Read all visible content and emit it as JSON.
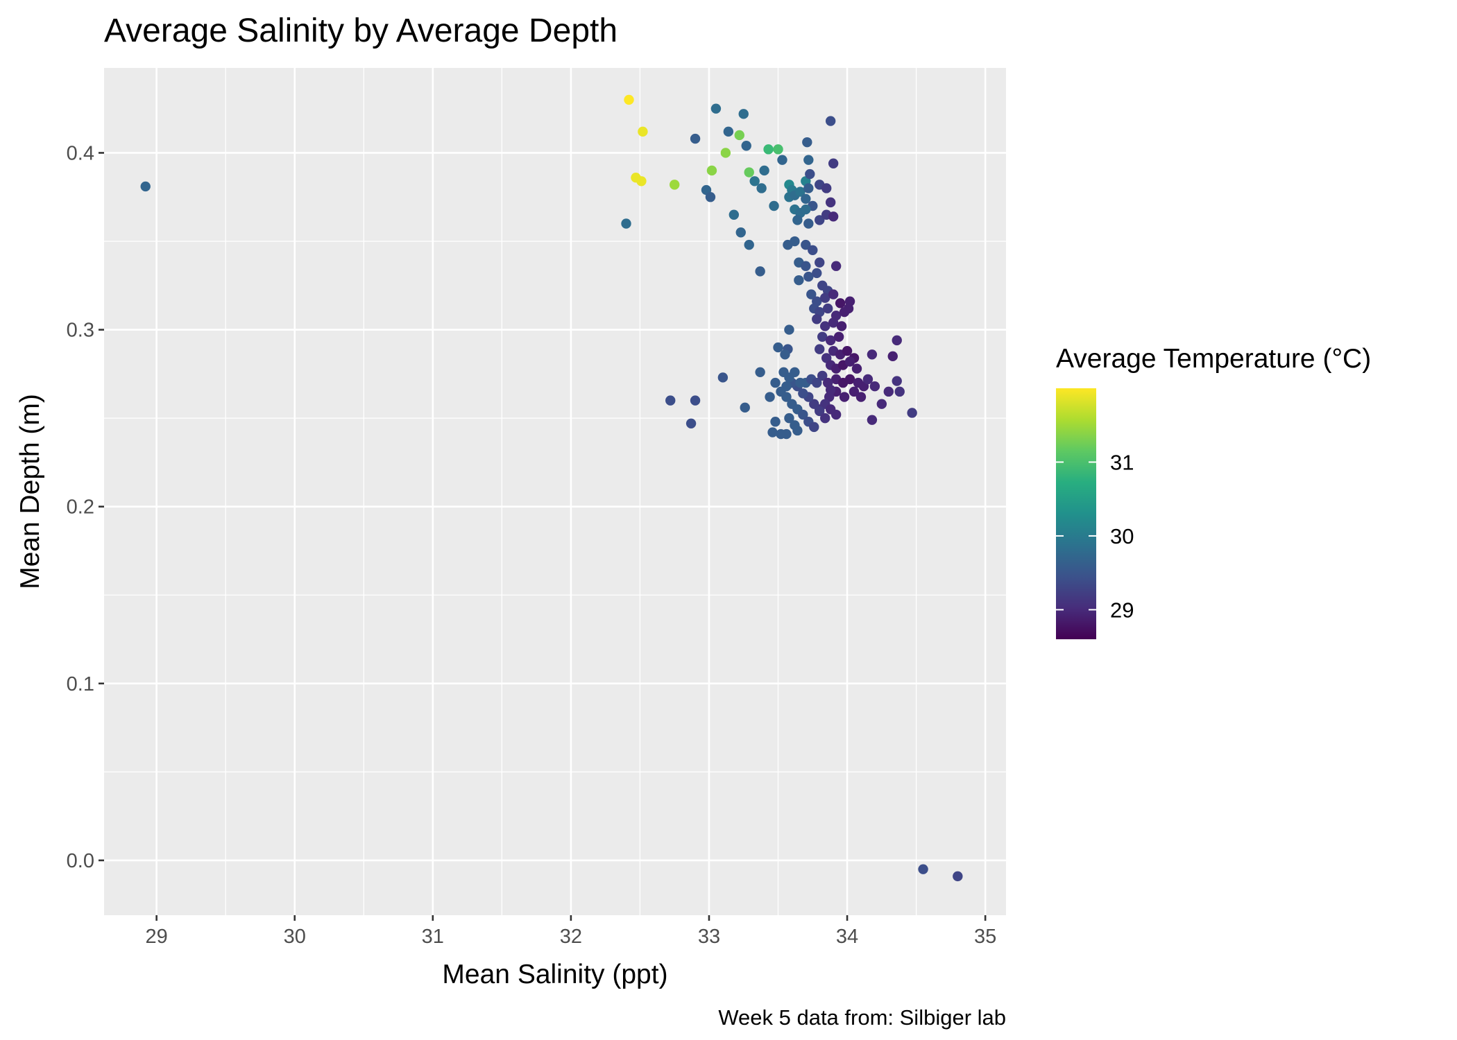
{
  "chart_data": {
    "type": "scatter",
    "title": "Average Salinity by Average Depth",
    "xlabel": "Mean Salinity (ppt)",
    "ylabel": "Mean Depth (m)",
    "caption": "Week 5 data from: Silbiger lab",
    "xlim": [
      28.62,
      35.15
    ],
    "ylim": [
      -0.031,
      0.448
    ],
    "x_ticks": [
      29,
      30,
      31,
      32,
      33,
      34,
      35
    ],
    "x_tick_labels": [
      "29",
      "30",
      "31",
      "32",
      "33",
      "34",
      "35"
    ],
    "y_ticks": [
      0.0,
      0.1,
      0.2,
      0.3,
      0.4
    ],
    "y_tick_labels": [
      "0.0",
      "0.1",
      "0.2",
      "0.3",
      "0.4"
    ],
    "grid": true,
    "legend": {
      "title": "Average Temperature (°C)",
      "type": "colorbar",
      "palette": "viridis",
      "range": [
        28.6,
        32.0
      ],
      "ticks": [
        29,
        30,
        31
      ],
      "tick_labels": [
        "29",
        "30",
        "31"
      ],
      "placement": "right"
    },
    "colors": {
      "panel_background": "#ebebeb",
      "grid": "#ffffff",
      "low": "#440154",
      "high": "#fde725"
    },
    "points": [
      [
        28.92,
        0.381,
        29.7
      ],
      [
        32.42,
        0.43,
        32.0
      ],
      [
        32.52,
        0.412,
        31.9
      ],
      [
        32.47,
        0.386,
        31.9
      ],
      [
        32.51,
        0.384,
        31.9
      ],
      [
        32.75,
        0.382,
        31.5
      ],
      [
        32.4,
        0.36,
        29.8
      ],
      [
        33.02,
        0.39,
        31.4
      ],
      [
        33.12,
        0.4,
        31.4
      ],
      [
        33.22,
        0.41,
        31.3
      ],
      [
        33.29,
        0.389,
        31.2
      ],
      [
        33.43,
        0.402,
        30.9
      ],
      [
        33.5,
        0.402,
        31.0
      ],
      [
        33.05,
        0.425,
        29.8
      ],
      [
        33.25,
        0.422,
        29.8
      ],
      [
        32.9,
        0.408,
        29.6
      ],
      [
        33.14,
        0.412,
        29.7
      ],
      [
        33.27,
        0.404,
        29.7
      ],
      [
        33.53,
        0.396,
        29.7
      ],
      [
        33.71,
        0.406,
        29.6
      ],
      [
        33.88,
        0.418,
        29.4
      ],
      [
        32.98,
        0.379,
        29.7
      ],
      [
        33.01,
        0.375,
        29.6
      ],
      [
        33.33,
        0.384,
        29.9
      ],
      [
        33.38,
        0.38,
        29.8
      ],
      [
        33.4,
        0.39,
        29.8
      ],
      [
        33.58,
        0.382,
        30.2
      ],
      [
        33.6,
        0.379,
        30.0
      ],
      [
        33.7,
        0.384,
        30.1
      ],
      [
        33.73,
        0.388,
        29.4
      ],
      [
        33.72,
        0.396,
        29.7
      ],
      [
        33.9,
        0.394,
        29.2
      ],
      [
        33.8,
        0.382,
        29.3
      ],
      [
        33.85,
        0.38,
        29.2
      ],
      [
        33.88,
        0.372,
        29.1
      ],
      [
        33.58,
        0.375,
        29.9
      ],
      [
        33.62,
        0.376,
        29.8
      ],
      [
        33.66,
        0.378,
        29.9
      ],
      [
        33.7,
        0.374,
        29.7
      ],
      [
        33.72,
        0.38,
        29.6
      ],
      [
        33.75,
        0.37,
        29.5
      ],
      [
        33.62,
        0.368,
        29.9
      ],
      [
        33.66,
        0.366,
        29.8
      ],
      [
        33.7,
        0.368,
        29.8
      ],
      [
        33.64,
        0.362,
        29.7
      ],
      [
        33.72,
        0.36,
        29.6
      ],
      [
        33.8,
        0.362,
        29.3
      ],
      [
        33.85,
        0.365,
        29.2
      ],
      [
        33.9,
        0.364,
        29.0
      ],
      [
        33.47,
        0.37,
        29.8
      ],
      [
        33.18,
        0.365,
        29.8
      ],
      [
        33.23,
        0.355,
        29.7
      ],
      [
        33.29,
        0.348,
        29.7
      ],
      [
        33.37,
        0.333,
        29.6
      ],
      [
        33.57,
        0.348,
        29.6
      ],
      [
        33.62,
        0.35,
        29.6
      ],
      [
        33.7,
        0.348,
        29.5
      ],
      [
        33.75,
        0.345,
        29.4
      ],
      [
        33.65,
        0.338,
        29.6
      ],
      [
        33.7,
        0.336,
        29.5
      ],
      [
        33.8,
        0.338,
        29.3
      ],
      [
        33.92,
        0.336,
        29.0
      ],
      [
        33.65,
        0.328,
        29.6
      ],
      [
        33.72,
        0.33,
        29.5
      ],
      [
        33.78,
        0.332,
        29.4
      ],
      [
        33.82,
        0.325,
        29.3
      ],
      [
        33.86,
        0.322,
        29.3
      ],
      [
        33.74,
        0.32,
        29.5
      ],
      [
        33.78,
        0.316,
        29.4
      ],
      [
        33.84,
        0.318,
        29.2
      ],
      [
        33.9,
        0.32,
        29.0
      ],
      [
        33.95,
        0.315,
        28.8
      ],
      [
        34.02,
        0.316,
        28.9
      ],
      [
        33.76,
        0.312,
        29.4
      ],
      [
        33.8,
        0.31,
        29.3
      ],
      [
        33.86,
        0.312,
        29.2
      ],
      [
        33.92,
        0.308,
        29.0
      ],
      [
        33.98,
        0.31,
        28.9
      ],
      [
        34.01,
        0.312,
        28.9
      ],
      [
        33.78,
        0.306,
        29.2
      ],
      [
        33.84,
        0.302,
        29.1
      ],
      [
        33.9,
        0.304,
        29.0
      ],
      [
        33.96,
        0.302,
        28.9
      ],
      [
        33.82,
        0.296,
        29.2
      ],
      [
        33.88,
        0.294,
        29.0
      ],
      [
        33.94,
        0.296,
        28.9
      ],
      [
        33.9,
        0.288,
        29.0
      ],
      [
        33.95,
        0.286,
        28.9
      ],
      [
        34.0,
        0.288,
        28.8
      ],
      [
        34.05,
        0.284,
        28.8
      ],
      [
        33.58,
        0.3,
        29.6
      ],
      [
        33.57,
        0.289,
        29.5
      ],
      [
        33.8,
        0.289,
        29.2
      ],
      [
        33.85,
        0.284,
        29.1
      ],
      [
        33.88,
        0.28,
        29.0
      ],
      [
        33.92,
        0.278,
        28.9
      ],
      [
        33.97,
        0.28,
        28.8
      ],
      [
        34.02,
        0.282,
        28.9
      ],
      [
        34.07,
        0.278,
        28.9
      ],
      [
        34.18,
        0.286,
        29.0
      ],
      [
        34.33,
        0.285,
        28.9
      ],
      [
        34.36,
        0.294,
        29.0
      ],
      [
        33.92,
        0.272,
        28.9
      ],
      [
        33.97,
        0.27,
        28.8
      ],
      [
        34.02,
        0.272,
        28.8
      ],
      [
        34.08,
        0.27,
        28.9
      ],
      [
        34.12,
        0.268,
        28.9
      ],
      [
        34.15,
        0.272,
        29.0
      ],
      [
        34.2,
        0.268,
        29.0
      ],
      [
        34.3,
        0.265,
        29.0
      ],
      [
        34.36,
        0.271,
        29.1
      ],
      [
        34.38,
        0.265,
        29.1
      ],
      [
        34.25,
        0.258,
        29.0
      ],
      [
        34.18,
        0.249,
        29.0
      ],
      [
        34.47,
        0.253,
        29.2
      ],
      [
        34.1,
        0.262,
        28.9
      ],
      [
        34.05,
        0.265,
        28.9
      ],
      [
        33.98,
        0.262,
        28.9
      ],
      [
        33.92,
        0.265,
        28.9
      ],
      [
        33.87,
        0.262,
        29.0
      ],
      [
        33.84,
        0.258,
        29.1
      ],
      [
        33.8,
        0.255,
        29.1
      ],
      [
        33.76,
        0.258,
        29.2
      ],
      [
        33.72,
        0.262,
        29.3
      ],
      [
        33.68,
        0.264,
        29.4
      ],
      [
        33.64,
        0.268,
        29.4
      ],
      [
        33.6,
        0.27,
        29.5
      ],
      [
        33.56,
        0.268,
        29.6
      ],
      [
        33.52,
        0.265,
        29.6
      ],
      [
        33.48,
        0.27,
        29.6
      ],
      [
        33.44,
        0.262,
        29.6
      ],
      [
        33.37,
        0.276,
        29.6
      ],
      [
        33.54,
        0.276,
        29.6
      ],
      [
        33.58,
        0.273,
        29.6
      ],
      [
        33.62,
        0.276,
        29.6
      ],
      [
        33.66,
        0.27,
        29.6
      ],
      [
        33.7,
        0.27,
        29.6
      ],
      [
        33.74,
        0.272,
        29.4
      ],
      [
        33.78,
        0.27,
        29.3
      ],
      [
        33.82,
        0.274,
        29.2
      ],
      [
        33.86,
        0.27,
        29.0
      ],
      [
        33.88,
        0.266,
        29.0
      ],
      [
        33.56,
        0.262,
        29.6
      ],
      [
        33.6,
        0.258,
        29.6
      ],
      [
        33.64,
        0.255,
        29.6
      ],
      [
        33.68,
        0.252,
        29.5
      ],
      [
        33.72,
        0.248,
        29.4
      ],
      [
        33.76,
        0.245,
        29.3
      ],
      [
        33.8,
        0.254,
        29.2
      ],
      [
        33.84,
        0.25,
        29.1
      ],
      [
        33.88,
        0.255,
        29.0
      ],
      [
        33.92,
        0.252,
        29.0
      ],
      [
        33.58,
        0.25,
        29.6
      ],
      [
        33.62,
        0.246,
        29.6
      ],
      [
        33.64,
        0.243,
        29.6
      ],
      [
        33.48,
        0.248,
        29.6
      ],
      [
        33.46,
        0.242,
        29.6
      ],
      [
        33.52,
        0.241,
        29.6
      ],
      [
        33.56,
        0.241,
        29.6
      ],
      [
        33.26,
        0.256,
        29.6
      ],
      [
        33.1,
        0.273,
        29.5
      ],
      [
        32.72,
        0.26,
        29.4
      ],
      [
        32.9,
        0.26,
        29.4
      ],
      [
        32.87,
        0.247,
        29.4
      ],
      [
        33.5,
        0.29,
        29.6
      ],
      [
        33.55,
        0.286,
        29.6
      ],
      [
        34.55,
        -0.005,
        29.4
      ],
      [
        34.8,
        -0.009,
        29.3
      ]
    ]
  }
}
